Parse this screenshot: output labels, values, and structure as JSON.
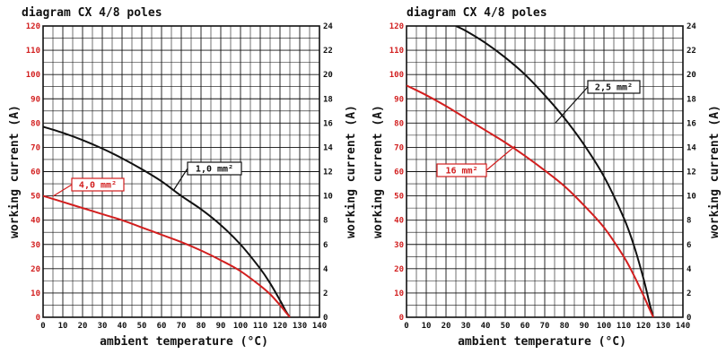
{
  "chart_data": [
    {
      "type": "line",
      "title": "diagram CX 4/8 poles",
      "xlabel": "ambient temperature (°C)",
      "ylabel_left": "working current (A)",
      "ylabel_right": "working current (A)",
      "xlim": [
        0,
        140
      ],
      "ylim_left": [
        0,
        120
      ],
      "ylim_right": [
        0,
        24
      ],
      "x_ticks": [
        "0",
        "10",
        "20",
        "30",
        "40",
        "50",
        "60",
        "70",
        "80",
        "90",
        "100",
        "110",
        "120",
        "130",
        "140"
      ],
      "y_ticks_left": [
        "0",
        "10",
        "20",
        "30",
        "40",
        "50",
        "60",
        "70",
        "80",
        "90",
        "100",
        "110",
        "120"
      ],
      "y_ticks_right": [
        "0",
        "2",
        "4",
        "6",
        "8",
        "10",
        "12",
        "14",
        "16",
        "18",
        "20",
        "22",
        "24"
      ],
      "grid": true,
      "series": [
        {
          "name": "1,0 mm²",
          "color": "#111111",
          "x": [
            0,
            10,
            20,
            30,
            40,
            50,
            60,
            70,
            80,
            90,
            100,
            110,
            115,
            120,
            123,
            125
          ],
          "y": [
            78.5,
            76,
            73,
            69.5,
            65.5,
            61,
            56,
            50,
            44.5,
            38,
            30,
            20,
            14,
            7,
            2.5,
            0
          ]
        },
        {
          "name": "4,0 mm²",
          "color": "#d21f1f",
          "x": [
            0,
            10,
            20,
            30,
            40,
            50,
            60,
            70,
            80,
            90,
            100,
            110,
            115,
            120,
            123,
            125
          ],
          "y": [
            50,
            47.5,
            45,
            42.5,
            40,
            37,
            34,
            31,
            27.5,
            23.5,
            19,
            13,
            9.5,
            5,
            2,
            0
          ]
        }
      ],
      "callouts": [
        {
          "series": 0,
          "text": "1,0 mm²",
          "color": "#111111"
        },
        {
          "series": 1,
          "text": "4,0 mm²",
          "color": "#d21f1f"
        }
      ]
    },
    {
      "type": "line",
      "title": "diagram CX 4/8 poles",
      "xlabel": "ambient temperature (°C)",
      "ylabel_left": "working current (A)",
      "ylabel_right": "working current (A)",
      "xlim": [
        0,
        140
      ],
      "ylim_left": [
        0,
        120
      ],
      "ylim_right": [
        0,
        24
      ],
      "x_ticks": [
        "0",
        "10",
        "20",
        "30",
        "40",
        "50",
        "60",
        "70",
        "80",
        "90",
        "100",
        "110",
        "120",
        "130",
        "140"
      ],
      "y_ticks_left": [
        "0",
        "10",
        "20",
        "30",
        "40",
        "50",
        "60",
        "70",
        "80",
        "90",
        "100",
        "110",
        "120"
      ],
      "y_ticks_right": [
        "0",
        "2",
        "4",
        "6",
        "8",
        "10",
        "12",
        "14",
        "16",
        "18",
        "20",
        "22",
        "24"
      ],
      "grid": true,
      "series": [
        {
          "name": "2,5 mm²",
          "color": "#111111",
          "x": [
            25,
            30,
            40,
            50,
            60,
            70,
            80,
            90,
            100,
            110,
            115,
            120,
            123,
            125
          ],
          "y": [
            120,
            118,
            113,
            107,
            100,
            91.5,
            82,
            71,
            58,
            41,
            30,
            16,
            6,
            0
          ]
        },
        {
          "name": "16 mm²",
          "color": "#d21f1f",
          "x": [
            0,
            10,
            20,
            30,
            40,
            50,
            60,
            70,
            80,
            90,
            100,
            110,
            115,
            120,
            123,
            125
          ],
          "y": [
            95.5,
            91.5,
            87,
            82,
            77,
            72,
            66.5,
            60.5,
            54,
            46,
            37,
            25,
            17.5,
            9,
            3.5,
            0
          ]
        }
      ],
      "callouts": [
        {
          "series": 0,
          "text": "2,5 mm²",
          "color": "#111111"
        },
        {
          "series": 1,
          "text": "16 mm²",
          "color": "#d21f1f"
        }
      ]
    }
  ]
}
